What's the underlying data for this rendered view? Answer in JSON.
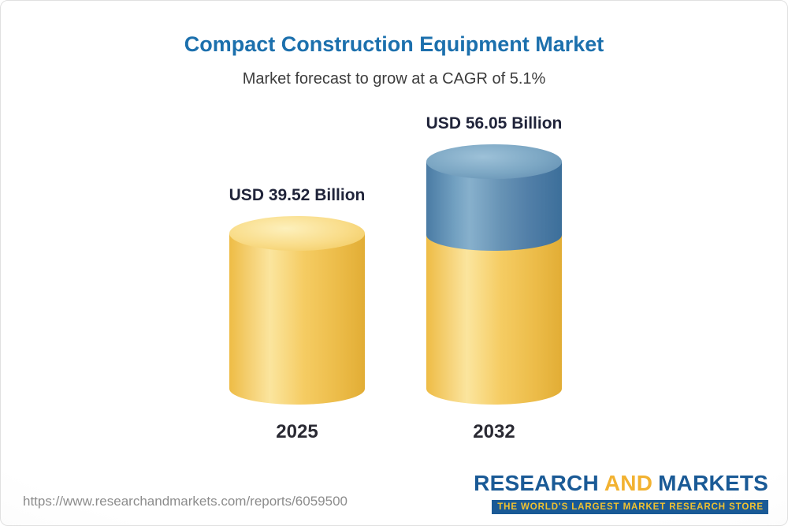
{
  "header": {
    "title": "Compact Construction Equipment Market",
    "subtitle": "Market forecast to grow at a CAGR of 5.1%"
  },
  "chart_data": {
    "type": "bar",
    "bar_style": "3d-cylinder",
    "title": "Compact Construction Equipment Market",
    "subtitle": "Market forecast to grow at a CAGR of 5.1%",
    "categories": [
      "2025",
      "2032"
    ],
    "values": [
      39.52,
      56.05
    ],
    "value_labels": [
      "USD 39.52 Billion",
      "USD 56.05 Billion"
    ],
    "unit": "USD Billion",
    "cagr_percent": 5.1,
    "legend": "none",
    "axes": "none",
    "colors": {
      "base_segment": "#f5cc63",
      "growth_segment": "#5d8cb0"
    }
  },
  "footer": {
    "url": "https://www.researchandmarkets.com/reports/6059500",
    "logo": {
      "research": "RESEARCH",
      "and": "AND",
      "markets": "MARKETS",
      "tagline": "THE WORLD'S LARGEST MARKET RESEARCH STORE"
    }
  },
  "colors": {
    "title": "#1c70ad",
    "subtitle": "#3c3c3c",
    "value_label": "#20243a",
    "url": "#8c8c8c",
    "logo_blue": "#1a5a96",
    "logo_gold": "#f2b231"
  }
}
